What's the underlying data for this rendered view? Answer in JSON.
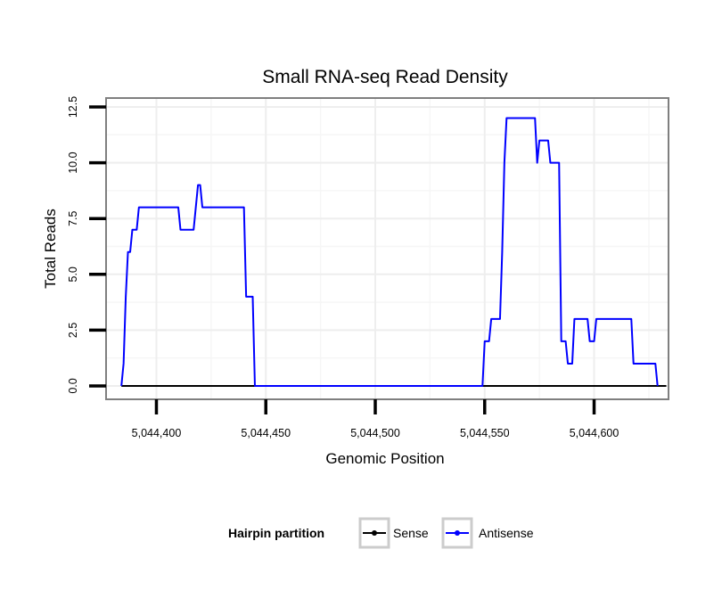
{
  "chart_data": {
    "type": "line",
    "title": "Small RNA-seq Read Density",
    "xlabel": "Genomic Position",
    "ylabel": "Total Reads",
    "xlim": [
      5044377,
      5044634
    ],
    "ylim": [
      -0.6,
      12.9
    ],
    "x_ticks": [
      5044400,
      5044450,
      5044500,
      5044550,
      5044600
    ],
    "x_tick_labels": [
      "5,044,400",
      "5,044,450",
      "5,044,500",
      "5,044,550",
      "5,044,600"
    ],
    "y_ticks": [
      0,
      2.5,
      5,
      7.5,
      10,
      12.5
    ],
    "y_tick_labels": [
      "0.0",
      "2.5",
      "5.0",
      "7.5",
      "10.0",
      "12.5"
    ],
    "grid": true,
    "legend": {
      "title": "Hairpin partition",
      "position": "bottom",
      "entries": [
        {
          "label": "Sense",
          "color": "#000000"
        },
        {
          "label": "Antisense",
          "color": "#0000ff"
        }
      ]
    },
    "series": [
      {
        "name": "Sense",
        "color": "#000000",
        "points": [
          [
            5044384,
            0
          ],
          [
            5044633,
            0
          ]
        ]
      },
      {
        "name": "Antisense",
        "color": "#0000ff",
        "points": [
          [
            5044384,
            0
          ],
          [
            5044385,
            1
          ],
          [
            5044386,
            4
          ],
          [
            5044387,
            6
          ],
          [
            5044388,
            6
          ],
          [
            5044389,
            7
          ],
          [
            5044391,
            7
          ],
          [
            5044392,
            8
          ],
          [
            5044410,
            8
          ],
          [
            5044411,
            7
          ],
          [
            5044417,
            7
          ],
          [
            5044419,
            9
          ],
          [
            5044420,
            9
          ],
          [
            5044421,
            8
          ],
          [
            5044440,
            8
          ],
          [
            5044441,
            4
          ],
          [
            5044444,
            4
          ],
          [
            5044445,
            0
          ],
          [
            5044549,
            0
          ],
          [
            5044550,
            2
          ],
          [
            5044552,
            2
          ],
          [
            5044553,
            3
          ],
          [
            5044557,
            3
          ],
          [
            5044558,
            6
          ],
          [
            5044559,
            10
          ],
          [
            5044560,
            12
          ],
          [
            5044573,
            12
          ],
          [
            5044574,
            10
          ],
          [
            5044575,
            11
          ],
          [
            5044579,
            11
          ],
          [
            5044580,
            10
          ],
          [
            5044584,
            10
          ],
          [
            5044585,
            2
          ],
          [
            5044587,
            2
          ],
          [
            5044588,
            1
          ],
          [
            5044590,
            1
          ],
          [
            5044591,
            3
          ],
          [
            5044597,
            3
          ],
          [
            5044598,
            2
          ],
          [
            5044600,
            2
          ],
          [
            5044601,
            3
          ],
          [
            5044617,
            3
          ],
          [
            5044618,
            1
          ],
          [
            5044628,
            1
          ],
          [
            5044629,
            0
          ]
        ]
      }
    ]
  }
}
